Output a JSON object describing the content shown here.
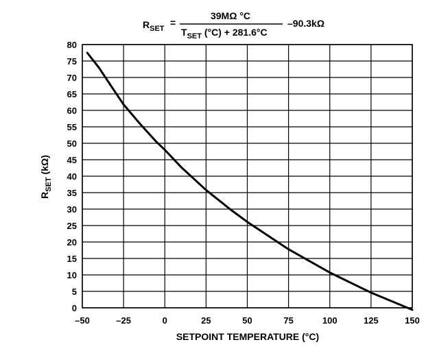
{
  "chart_data": {
    "type": "line",
    "formula": {
      "lhs": "R",
      "lhs_sub": "SET",
      "equals": "=",
      "numerator": "39MΩ °C",
      "denominator_main": "T",
      "denominator_sub": "SET",
      "denominator_rest": " (°C) + 281.6°C",
      "offset": "–90.3kΩ"
    },
    "xlabel": "SETPOINT TEMPERATURE (°C)",
    "ylabel_main": "R",
    "ylabel_sub": "SET",
    "ylabel_rest": " (kΩ)",
    "xlim": [
      -50,
      150
    ],
    "ylim": [
      0,
      80
    ],
    "x_ticks": [
      -50,
      -25,
      0,
      25,
      50,
      75,
      100,
      125,
      150
    ],
    "x_tick_labels": [
      "–50",
      "–25",
      "0",
      "25",
      "50",
      "75",
      "100",
      "125",
      "150"
    ],
    "y_ticks": [
      0,
      5,
      10,
      15,
      20,
      25,
      30,
      35,
      40,
      45,
      50,
      55,
      60,
      65,
      70,
      75,
      80
    ],
    "y_tick_labels": [
      "0",
      "5",
      "10",
      "15",
      "20",
      "25",
      "30",
      "35",
      "40",
      "45",
      "50",
      "55",
      "60",
      "65",
      "70",
      "75",
      "80"
    ],
    "grid": true,
    "series": [
      {
        "x": [
          -47,
          -40,
          -30,
          -25,
          -15,
          -5,
          0,
          10,
          25,
          40,
          50,
          75,
          100,
          125,
          150
        ],
        "y": [
          77.5,
          73.0,
          65.5,
          61.8,
          55.9,
          50.4,
          48.0,
          42.7,
          35.8,
          29.8,
          26.1,
          17.8,
          10.7,
          4.6,
          -0.6
        ]
      }
    ]
  }
}
